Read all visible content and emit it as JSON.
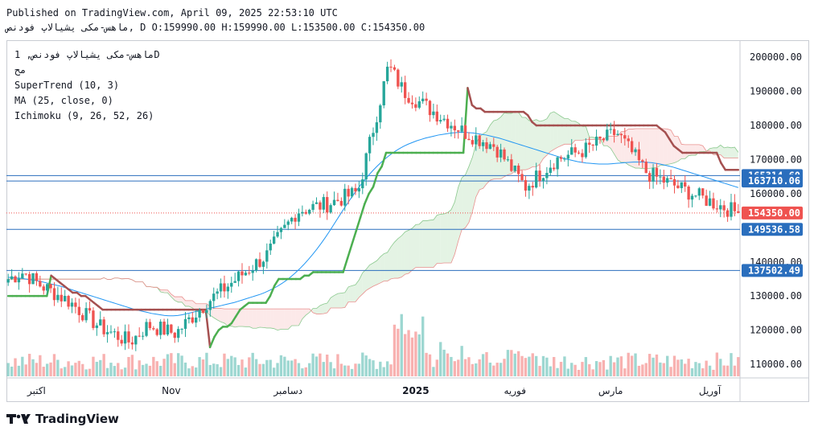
{
  "header": {
    "published": "Published on TradingView.com, April 09, 2025 22:53:10 UTC",
    "symbol_line": "ماهس-مکی یشیالاپ فودنص, D O:159990.00 H:159990.00 L:153500.00 C:154350.00"
  },
  "legend": {
    "symbol": "ماهس-مکی یشیالاپ فودنص, 1D",
    "sub": "مح",
    "supertrend": "SuperTrend (10, 3)",
    "ma": "MA (25, close, 0)",
    "ichimoku": "Ichimoku (9, 26, 52, 26)"
  },
  "footer": {
    "brand": "TradingView"
  },
  "chart_data": {
    "type": "candlestick",
    "x_labels": [
      "اکتبر",
      "Nov",
      "دسامبر",
      "2025",
      "فوریه",
      "مارس",
      "آوریل"
    ],
    "y_ticks": [
      110000,
      120000,
      130000,
      140000,
      150000,
      160000,
      170000,
      180000,
      190000,
      200000
    ],
    "ylim": [
      106000,
      205000
    ],
    "price_labels": [
      {
        "value": 165314.6,
        "label": "165314.60",
        "color": "#2a6ebd"
      },
      {
        "value": 163710.06,
        "label": "163710.06",
        "color": "#2a6ebd"
      },
      {
        "value": 154350.0,
        "label": "154350.00",
        "color": "#ef5350"
      },
      {
        "value": 149536.58,
        "label": "149536.58",
        "color": "#2a6ebd"
      },
      {
        "value": 137502.49,
        "label": "137502.49",
        "color": "#2a6ebd"
      }
    ],
    "horizontal_lines": [
      165314.6,
      163710.06,
      149536.58,
      137502.49
    ],
    "last_close": 154350.0,
    "colors": {
      "up": "#26a69a",
      "down": "#ef5350",
      "ma": "#2196f3",
      "st_up": "#4caf50",
      "st_down": "#a55050",
      "cloud_up": "#a5d6a7",
      "cloud_down": "#f6b6b6"
    },
    "series": [
      {
        "name": "SuperTrend (10, 3)",
        "values": [
          130000,
          130000,
          130000,
          130000,
          130000,
          130000,
          130000,
          130000,
          130000,
          130000,
          136000,
          135000,
          134000,
          133000,
          132000,
          131000,
          131000,
          130000,
          130000,
          129000,
          128000,
          127000,
          126000,
          126000,
          126000,
          126000,
          126000,
          126000,
          126000,
          126000,
          126000,
          126000,
          126000,
          126000,
          126000,
          126000,
          126000,
          126000,
          126000,
          126000,
          126000,
          126000,
          126000,
          126000,
          126000,
          126000,
          126000,
          115000,
          118000,
          120000,
          121000,
          121000,
          122000,
          124000,
          126000,
          127000,
          128000,
          128000,
          128000,
          128000,
          128000,
          130000,
          133000,
          135000,
          135000,
          135000,
          135000,
          135000,
          135000,
          136000,
          136000,
          137000,
          137000,
          137000,
          137000,
          137000,
          137000,
          137000,
          137000,
          141000,
          145000,
          149000,
          153000,
          157000,
          160000,
          162000,
          166000,
          168000,
          172000,
          172000,
          172000,
          172000,
          172000,
          172000,
          172000,
          172000,
          172000,
          172000,
          172000,
          172000,
          172000,
          172000,
          172000,
          172000,
          172000,
          172000,
          172000,
          191000,
          186000,
          185000,
          185000,
          184000,
          184000,
          184000,
          184000,
          184000,
          184000,
          184000,
          184000,
          184000,
          184000,
          183000,
          181000,
          180000,
          180000,
          180000,
          180000,
          180000,
          180000,
          180000,
          180000,
          180000,
          180000,
          180000,
          180000,
          180000,
          180000,
          180000,
          180000,
          180000,
          180000,
          180000,
          180000,
          180000,
          180000,
          180000,
          180000,
          180000,
          180000,
          180000,
          180000,
          180000,
          179000,
          178000,
          176000,
          174000,
          173000,
          172000,
          172000,
          172000,
          172000,
          172000,
          172000,
          172000,
          172000,
          172000,
          169000,
          167000,
          167000,
          167000,
          167000
        ]
      },
      {
        "name": "MA (25, close, 0)",
        "values": [
          135500,
          135400,
          135300,
          135200,
          135000,
          134800,
          134600,
          134400,
          134100,
          133800,
          133500,
          133200,
          132900,
          132500,
          132100,
          131700,
          131300,
          130900,
          130500,
          130100,
          129700,
          129300,
          128900,
          128500,
          128100,
          127700,
          127300,
          126900,
          126500,
          126100,
          125800,
          125500,
          125200,
          124900,
          124700,
          124500,
          124300,
          124200,
          124200,
          124300,
          124500,
          124800,
          125100,
          125400,
          125700,
          126000,
          126300,
          126600,
          126900,
          127200,
          127500,
          127800,
          128100,
          128500,
          128900,
          129300,
          129700,
          130100,
          130500,
          131000,
          131600,
          132200,
          132900,
          133700,
          134600,
          135600,
          136700,
          137900,
          139200,
          140600,
          142100,
          143700,
          145400,
          147200,
          149100,
          151100,
          153100,
          155100,
          157000,
          158900,
          160700,
          162400,
          164000,
          165500,
          166900,
          168200,
          169400,
          170500,
          171500,
          172400,
          173200,
          173900,
          174500,
          175000,
          175500,
          175900,
          176300,
          176600,
          176900,
          177200,
          177400,
          177600,
          177800,
          177900,
          178000,
          178000,
          177900,
          177800,
          177600,
          177400,
          177200,
          176900,
          176600,
          176300,
          175900,
          175500,
          175100,
          174700,
          174300,
          173900,
          173500,
          173100,
          172700,
          172300,
          171900,
          171500,
          171100,
          170700,
          170300,
          170000,
          169700,
          169400,
          169200,
          169000,
          168900,
          168800,
          168700,
          168700,
          168700,
          168800,
          168900,
          169000,
          169100,
          169200,
          169300,
          169300,
          169300,
          169200,
          169100,
          168900,
          168700,
          168400,
          168100,
          167800,
          167400,
          167000,
          166600,
          166200,
          165800,
          165400,
          165000,
          164600,
          164200,
          163800,
          163400,
          163000,
          162600,
          162200,
          161800
        ]
      }
    ],
    "x_label_index": [
      8,
      46,
      79,
      115,
      143,
      170,
      198
    ],
    "candles_count": 207
  }
}
